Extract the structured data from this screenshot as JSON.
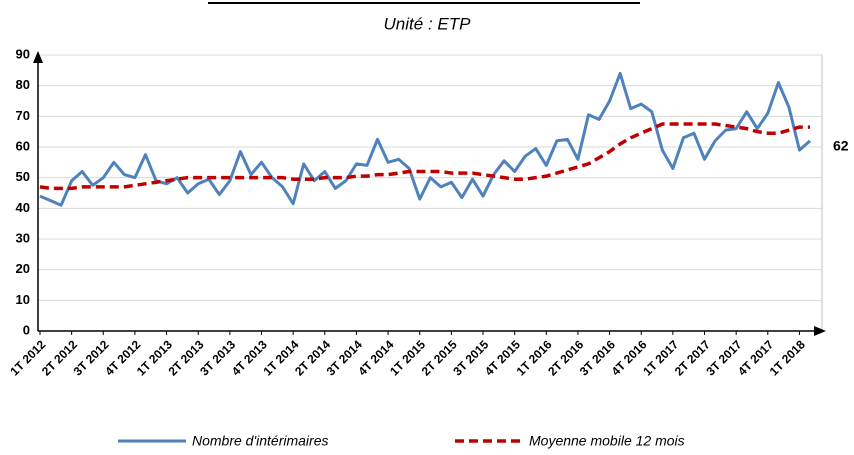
{
  "chart_data": {
    "type": "line",
    "subtitle": "Unité : ETP",
    "categories": [
      "1T 2012",
      null,
      null,
      "2T 2012",
      null,
      null,
      "3T 2012",
      null,
      null,
      "4T 2012",
      null,
      null,
      "1T 2013",
      null,
      null,
      "2T 2013",
      null,
      null,
      "3T 2013",
      null,
      null,
      "4T 2013",
      null,
      null,
      "1T 2014",
      null,
      null,
      "2T 2014",
      null,
      null,
      "3T 2014",
      null,
      null,
      "4T 2014",
      null,
      null,
      "1T 2015",
      null,
      null,
      "2T 2015",
      null,
      null,
      "3T 2015",
      null,
      null,
      "4T 2015",
      null,
      null,
      "1T 2016",
      null,
      null,
      "2T 2016",
      null,
      null,
      "3T 2016",
      null,
      null,
      "4T 2016",
      null,
      null,
      "1T 2017",
      null,
      null,
      "2T 2017",
      null,
      null,
      "3T 2017",
      null,
      null,
      "4T 2017",
      null,
      null,
      "1T 2018",
      null
    ],
    "series": [
      {
        "name": "Nombre d'intérimaires",
        "color": "#4f81bd",
        "dash": false,
        "values": [
          44,
          42.5,
          41,
          49,
          52,
          47.5,
          50,
          55,
          51,
          50,
          57.5,
          49,
          48,
          50,
          45,
          48,
          49.5,
          44.5,
          49,
          58.5,
          51,
          55,
          50,
          47,
          41.5,
          54.5,
          49,
          52,
          46.5,
          49,
          54.5,
          54,
          62.5,
          55,
          56,
          53,
          43,
          50,
          47,
          48.5,
          43.5,
          49.5,
          44,
          51,
          55.5,
          52,
          57,
          59.5,
          54,
          62,
          62.5,
          56,
          70.5,
          69,
          75,
          84,
          72.5,
          74,
          71.5,
          59,
          53,
          63,
          64.5,
          56,
          62,
          65.5,
          66,
          71.5,
          66,
          71,
          81,
          73,
          59,
          62
        ]
      },
      {
        "name": "Moyenne mobile 12 mois",
        "color": "#c00000",
        "dash": true,
        "values": [
          47,
          46.5,
          46.5,
          46.5,
          47,
          47,
          47,
          47,
          47,
          47.5,
          48,
          48.5,
          49,
          49.5,
          50,
          50,
          50,
          50,
          50,
          50,
          50,
          50,
          50,
          50,
          49.5,
          49.5,
          49.5,
          50,
          50,
          50,
          50.5,
          50.5,
          51,
          51,
          51.5,
          52,
          52,
          52,
          52,
          51.5,
          51.5,
          51.5,
          51,
          50.5,
          50,
          49.5,
          49.5,
          50,
          50.5,
          51.5,
          52.5,
          53.5,
          54.5,
          56.5,
          58.5,
          61,
          63,
          64.5,
          66,
          67.5,
          67.5,
          67.5,
          67.5,
          67.5,
          67.5,
          67,
          66.5,
          66,
          65,
          64.5,
          64.5,
          65.5,
          66.5,
          66.5
        ]
      }
    ],
    "ylim": [
      0,
      90
    ],
    "yticks": [
      0,
      10,
      20,
      30,
      40,
      50,
      60,
      70,
      80,
      90
    ],
    "grid": true,
    "legend": "bottom"
  }
}
